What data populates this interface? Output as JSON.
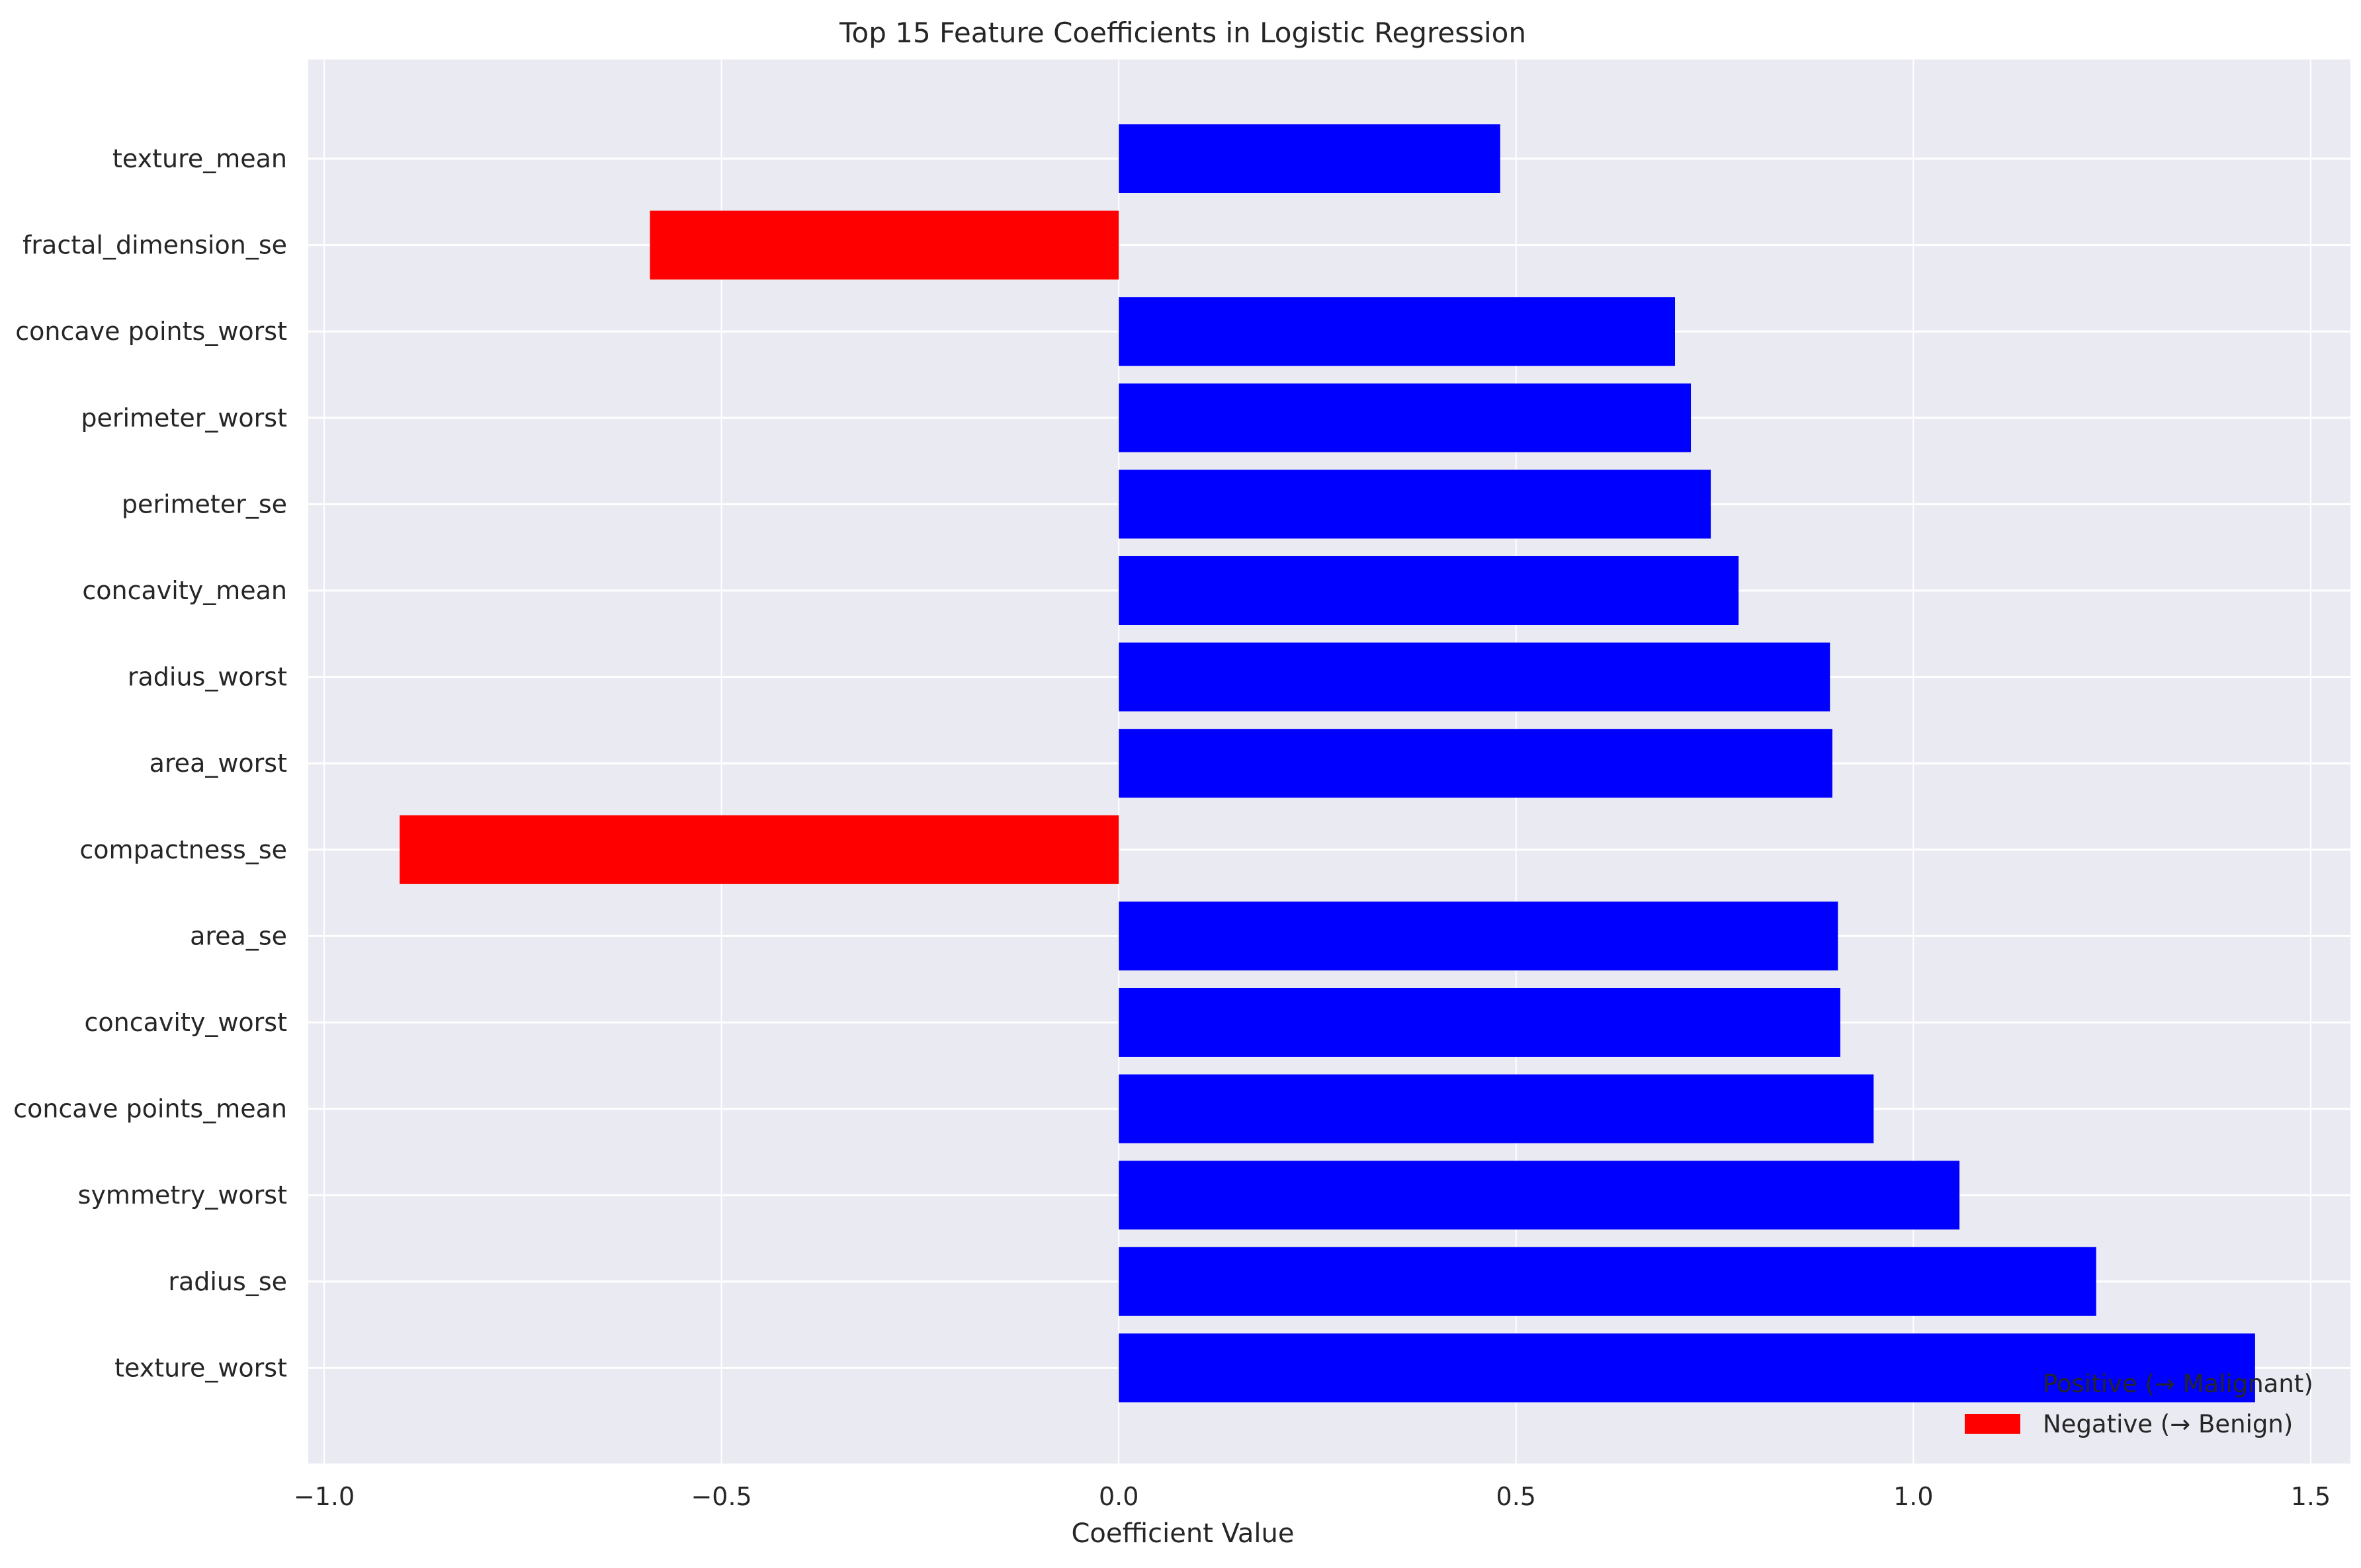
{
  "chart_data": {
    "type": "bar",
    "orientation": "horizontal",
    "title": "Top 15 Feature Coefficients in Logistic Regression",
    "xlabel": "Coefficient Value",
    "ylabel": "",
    "xlim": [
      -1.02,
      1.55
    ],
    "xticks": [
      -1.0,
      -0.5,
      0.0,
      0.5,
      1.0,
      1.5
    ],
    "xtick_labels": [
      "−1.0",
      "−0.5",
      "0.0",
      "0.5",
      "1.0",
      "1.5"
    ],
    "grid": true,
    "legend_position": "bottom-right",
    "colors": {
      "positive": "#0000ff",
      "negative": "#ff0000",
      "background": "#eaeaf2",
      "grid": "#ffffff"
    },
    "legend": [
      {
        "label": "Positive (→ Malignant)",
        "color": "#0000ff"
      },
      {
        "label": "Negative (→ Benign)",
        "color": "#ff0000"
      }
    ],
    "categories": [
      "texture_mean",
      "fractal_dimension_se",
      "concave points_worst",
      "perimeter_worst",
      "perimeter_se",
      "concavity_mean",
      "radius_worst",
      "area_worst",
      "compactness_se",
      "area_se",
      "concavity_worst",
      "concave points_mean",
      "symmetry_worst",
      "radius_se",
      "texture_worst"
    ],
    "values": [
      0.48,
      -0.59,
      0.7,
      0.72,
      0.745,
      0.78,
      0.895,
      0.898,
      -0.905,
      0.905,
      0.908,
      0.95,
      1.058,
      1.23,
      1.43
    ]
  }
}
